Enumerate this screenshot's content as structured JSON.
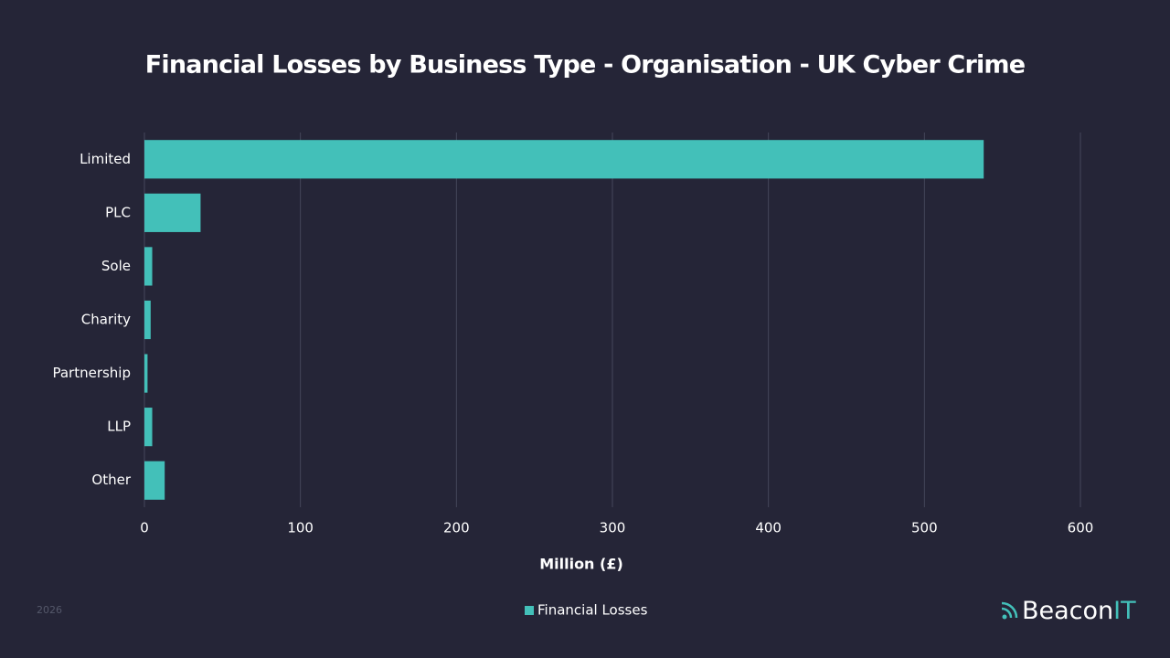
{
  "chart_data": {
    "type": "bar",
    "orientation": "horizontal",
    "title": "Financial Losses by Business Type - Organisation - UK Cyber Crime",
    "categories": [
      "Limited",
      "PLC",
      "Sole",
      "Charity",
      "Partnership",
      "LLP",
      "Other"
    ],
    "series": [
      {
        "name": "Financial Losses",
        "color": "#43c0b9",
        "values": [
          538,
          36,
          5,
          4,
          2,
          5,
          13
        ]
      }
    ],
    "xlabel": "Million (£)",
    "xlim": [
      0,
      600
    ],
    "xticks": [
      0,
      100,
      200,
      300,
      400,
      500,
      600
    ],
    "grid": true,
    "legend": "bottom"
  },
  "footer": {
    "year": "2026",
    "brand": [
      "Beacon",
      "IT"
    ]
  }
}
